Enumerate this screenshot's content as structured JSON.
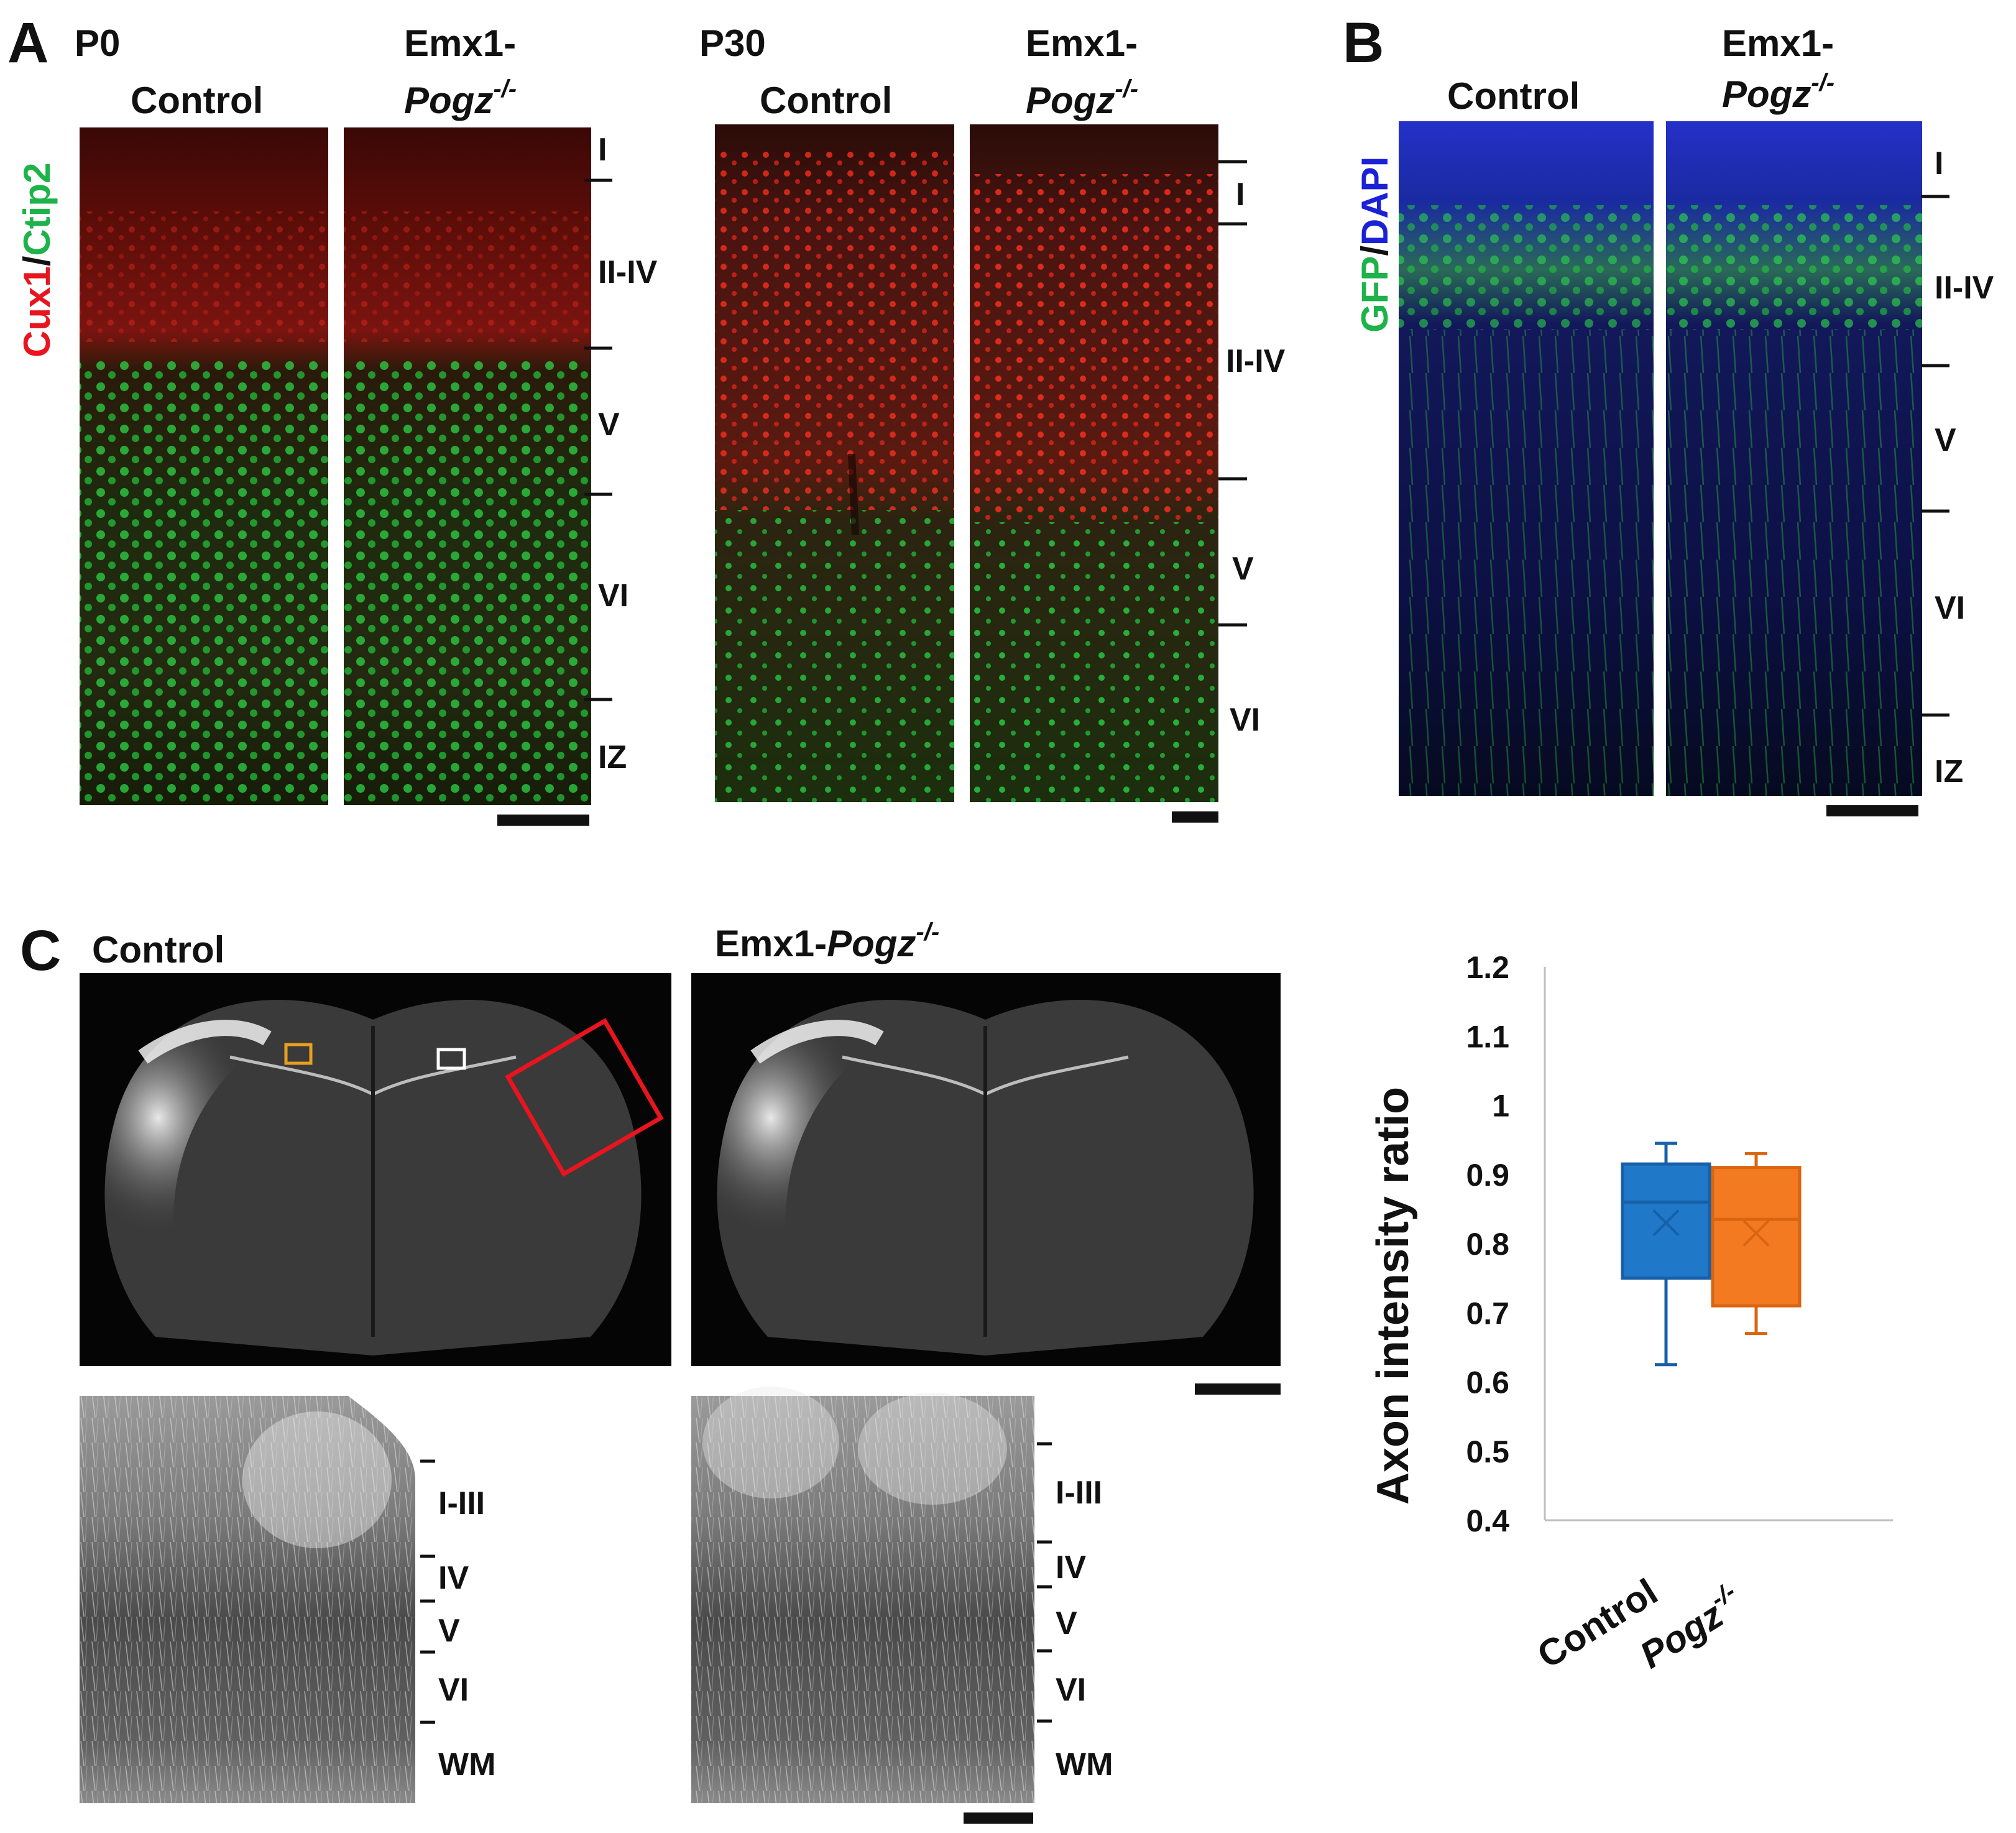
{
  "panel_a": {
    "letter": "A",
    "p0": {
      "age": "P0",
      "control": "Control",
      "mutant_line": "Emx1-",
      "mutant_gene": "Pogz",
      "mutant_sup": "-/-"
    },
    "p30": {
      "age": "P30",
      "control": "Control",
      "mutant_line": "Emx1-",
      "mutant_gene": "Pogz",
      "mutant_sup": "-/-"
    },
    "stain_red": "Cux1",
    "stain_sep": "/",
    "stain_green": "Ctip2",
    "layers_p0": [
      "I",
      "II-IV",
      "V",
      "VI",
      "IZ"
    ],
    "layers_p30": [
      "I",
      "II-IV",
      "V",
      "VI"
    ]
  },
  "panel_b": {
    "letter": "B",
    "control": "Control",
    "mutant_line": "Emx1-",
    "mutant_gene": "Pogz",
    "mutant_sup": "-/-",
    "stain_green": "GFP",
    "stain_sep": "/",
    "stain_blue": "DAPI",
    "layers": [
      "I",
      "II-IV",
      "V",
      "VI",
      "IZ"
    ]
  },
  "panel_c": {
    "letter": "C",
    "control": "Control",
    "mutant_line": "Emx1-",
    "mutant_gene": "Pogz",
    "mutant_sup": "-/-",
    "layers": [
      "I-III",
      "IV",
      "V",
      "VI",
      "WM"
    ]
  },
  "colors": {
    "red": "#e8141e",
    "green": "#1db34a",
    "blue": "#1a22d8",
    "box_control": "#1f78c8",
    "box_control_edge": "#1760a8",
    "box_pogz": "#f47a22",
    "box_pogz_edge": "#d96510"
  },
  "chart_data": {
    "type": "box",
    "ylabel": "Axon intensity ratio",
    "ylim": [
      0.4,
      1.2
    ],
    "yticks": [
      "0.4",
      "0.5",
      "0.6",
      "0.7",
      "0.8",
      "0.9",
      "1",
      "1.1",
      "1.2"
    ],
    "categories": [
      {
        "label": "Control",
        "italic": false,
        "sup": ""
      },
      {
        "label": "Pogz",
        "italic": true,
        "sup": "-/-"
      }
    ],
    "series": [
      {
        "name": "Control",
        "min": 0.625,
        "q1": 0.75,
        "median": 0.86,
        "mean": 0.83,
        "q3": 0.915,
        "max": 0.945
      },
      {
        "name": "Pogz-/-",
        "min": 0.67,
        "q1": 0.71,
        "median": 0.835,
        "mean": 0.815,
        "q3": 0.91,
        "max": 0.93
      }
    ]
  }
}
